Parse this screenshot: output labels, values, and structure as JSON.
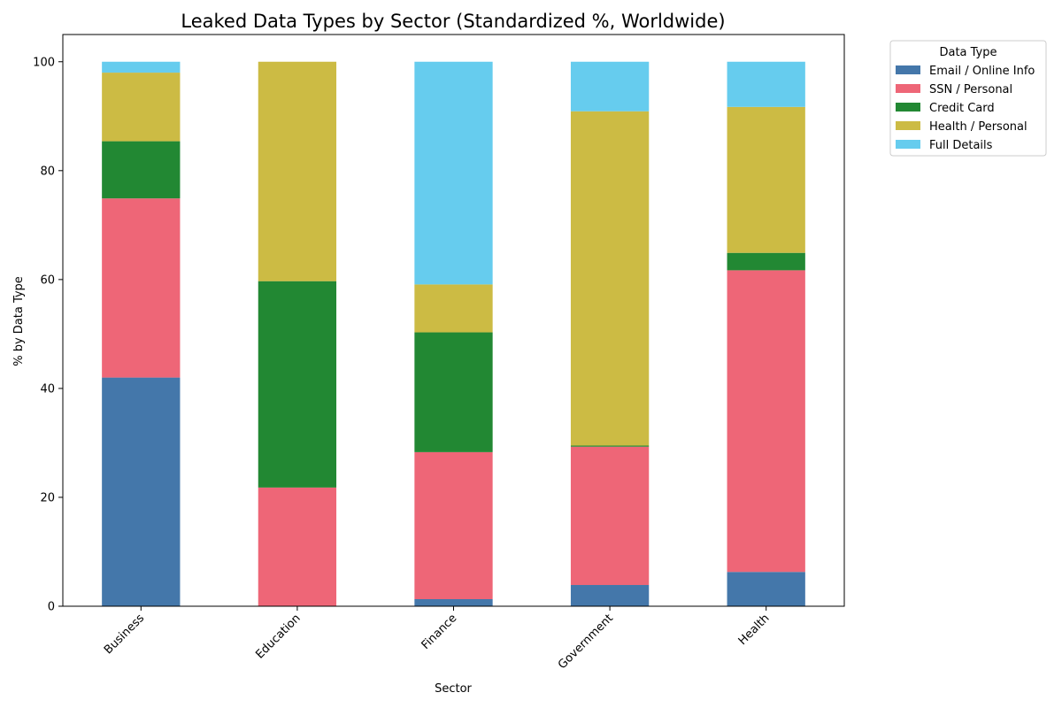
{
  "chart_data": {
    "type": "bar",
    "stacked": true,
    "title": "Leaked Data Types by Sector (Standardized %, Worldwide)",
    "xlabel": "Sector",
    "ylabel": "% by Data Type",
    "ylim": [
      0,
      105
    ],
    "yticks": [
      0,
      20,
      40,
      60,
      80,
      100
    ],
    "grid": false,
    "categories": [
      "Business",
      "Education",
      "Finance",
      "Government",
      "Health"
    ],
    "legend": {
      "title": "Data Type",
      "placement": "outside top-right"
    },
    "series": [
      {
        "name": "Email / Online Info",
        "color": "#4477aa",
        "values": [
          42.0,
          0.0,
          1.3,
          3.9,
          6.3
        ]
      },
      {
        "name": "SSN / Personal",
        "color": "#ee6677",
        "values": [
          32.9,
          21.8,
          27.0,
          25.4,
          55.4
        ]
      },
      {
        "name": "Credit Card",
        "color": "#228833",
        "values": [
          10.5,
          37.9,
          22.0,
          0.2,
          3.2
        ]
      },
      {
        "name": "Health / Personal",
        "color": "#ccbb44",
        "values": [
          12.6,
          40.3,
          8.8,
          61.4,
          26.8
        ]
      },
      {
        "name": "Full Details",
        "color": "#66ccee",
        "values": [
          2.0,
          0.0,
          40.9,
          9.1,
          8.3
        ]
      }
    ]
  }
}
